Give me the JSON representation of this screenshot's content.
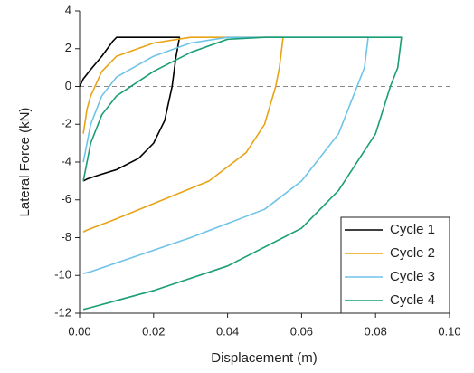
{
  "chart_data": {
    "type": "line",
    "xlabel": "Displacement (m)",
    "ylabel": "Lateral Force (kN)",
    "xlim": [
      0,
      0.1
    ],
    "ylim": [
      -12,
      4
    ],
    "xticks": [
      {
        "value": 0,
        "label": "0.00"
      },
      {
        "value": 0.02,
        "label": "0.02"
      },
      {
        "value": 0.04,
        "label": "0.04"
      },
      {
        "value": 0.06,
        "label": "0.06"
      },
      {
        "value": 0.08,
        "label": "0.08"
      },
      {
        "value": 0.1,
        "label": "0.10"
      }
    ],
    "yticks": [
      -12,
      -10,
      -8,
      -6,
      -4,
      -2,
      0,
      2,
      4
    ],
    "zero_line": 0,
    "legend": "lower right",
    "series": [
      {
        "name": "Cycle 1",
        "color": "#000000",
        "x": [
          0,
          0.001,
          0.003,
          0.006,
          0.009,
          0.01,
          0.015,
          0.02,
          0.027,
          0.026,
          0.025,
          0.023,
          0.02,
          0.016,
          0.01,
          0.005,
          0.002,
          0.001
        ],
        "values": [
          0,
          0.4,
          0.9,
          1.6,
          2.4,
          2.6,
          2.6,
          2.6,
          2.6,
          1.5,
          0,
          -1.8,
          -3,
          -3.8,
          -4.4,
          -4.7,
          -4.9,
          -5
        ]
      },
      {
        "name": "Cycle 2",
        "color": "#e8a317",
        "x": [
          0.001,
          0.002,
          0.003,
          0.006,
          0.01,
          0.02,
          0.03,
          0.04,
          0.055,
          0.054,
          0.053,
          0.05,
          0.045,
          0.035,
          0.02,
          0.01,
          0.002,
          0.001
        ],
        "values": [
          -2.5,
          -1.2,
          -0.5,
          0.8,
          1.6,
          2.3,
          2.6,
          2.6,
          2.6,
          1,
          0,
          -2,
          -3.5,
          -5,
          -6.2,
          -7,
          -7.6,
          -7.7
        ]
      },
      {
        "name": "Cycle 3",
        "color": "#6ec3e8",
        "x": [
          0.001,
          0.003,
          0.006,
          0.01,
          0.02,
          0.03,
          0.04,
          0.06,
          0.078,
          0.077,
          0.075,
          0.07,
          0.06,
          0.05,
          0.03,
          0.015,
          0.003,
          0.001
        ],
        "values": [
          -4,
          -2,
          -0.5,
          0.5,
          1.6,
          2.3,
          2.6,
          2.6,
          2.6,
          1,
          0,
          -2.5,
          -5,
          -6.5,
          -8,
          -9,
          -9.8,
          -9.9
        ]
      },
      {
        "name": "Cycle 4",
        "color": "#1a9e77",
        "x": [
          0.001,
          0.003,
          0.006,
          0.01,
          0.02,
          0.03,
          0.04,
          0.05,
          0.087,
          0.086,
          0.084,
          0.08,
          0.07,
          0.06,
          0.04,
          0.02,
          0.003,
          0.001
        ],
        "values": [
          -5,
          -3,
          -1.5,
          -0.5,
          0.8,
          1.8,
          2.5,
          2.6,
          2.6,
          1,
          0,
          -2.5,
          -5.5,
          -7.5,
          -9.5,
          -10.8,
          -11.7,
          -11.8
        ]
      }
    ]
  }
}
